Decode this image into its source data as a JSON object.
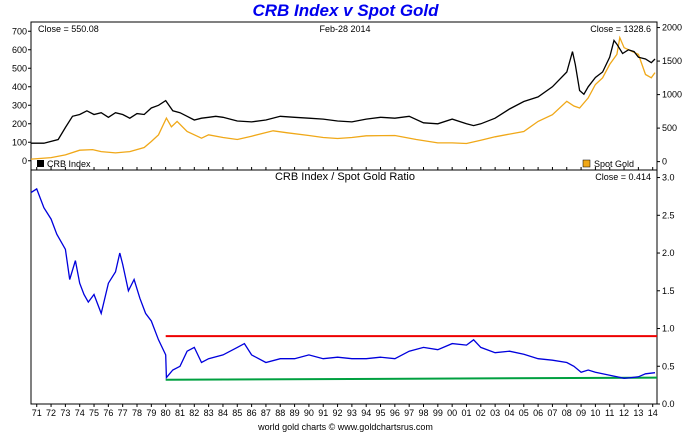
{
  "title": "CRB Index v Spot Gold",
  "footer": "world gold charts © www.goldchartsrus.com",
  "top_panel": {
    "close_left": "Close = 550.08",
    "date": "Feb-28  2014",
    "close_right": "Close = 1328.6",
    "legend_left": "CRB Index",
    "legend_right": "Spot Gold",
    "left_ticks": [
      "0",
      "100",
      "200",
      "300",
      "400",
      "500",
      "600",
      "700"
    ],
    "right_ticks": [
      "0",
      "500",
      "1000",
      "1500",
      "2000"
    ]
  },
  "bottom_panel": {
    "title": "CRB Index  /  Spot Gold Ratio",
    "close": "Close = 0.414",
    "ticks": [
      "0.0",
      "0.5",
      "1.0",
      "1.5",
      "2.0",
      "2.5",
      "3.0"
    ]
  },
  "x_labels": [
    "71",
    "72",
    "73",
    "74",
    "75",
    "76",
    "77",
    "78",
    "79",
    "80",
    "81",
    "82",
    "83",
    "84",
    "85",
    "86",
    "87",
    "88",
    "89",
    "90",
    "91",
    "92",
    "93",
    "94",
    "95",
    "96",
    "97",
    "98",
    "99",
    "00",
    "01",
    "02",
    "03",
    "04",
    "05",
    "06",
    "07",
    "08",
    "09",
    "10",
    "11",
    "12",
    "13",
    "14"
  ],
  "colors": {
    "crb": "#000000",
    "gold": "#f0a818",
    "ratio": "#0000dd",
    "upper": "#ee0000",
    "lower": "#00a040",
    "title": "#0000ee"
  },
  "chart_data": [
    {
      "type": "line",
      "title": "",
      "xlim": [
        1970.6,
        2014.3
      ],
      "ylim_left": [
        -50,
        750
      ],
      "ylim_right": [
        -125,
        2083
      ],
      "series": [
        {
          "name": "CRB Index",
          "axis": "left",
          "x": [
            1970.6,
            1971.5,
            1972.5,
            1973.0,
            1973.5,
            1974.0,
            1974.5,
            1975.0,
            1975.5,
            1976.0,
            1976.5,
            1977.0,
            1977.5,
            1978.0,
            1978.5,
            1979.0,
            1979.5,
            1980.0,
            1980.5,
            1981.0,
            1981.5,
            1982.0,
            1982.5,
            1983.0,
            1983.5,
            1984.0,
            1984.5,
            1985.0,
            1986.0,
            1987.0,
            1988.0,
            1989.0,
            1990.0,
            1991.0,
            1992.0,
            1993.0,
            1994.0,
            1995.0,
            1996.0,
            1997.0,
            1998.0,
            1999.0,
            2000.0,
            2001.0,
            2001.5,
            2002.0,
            2003.0,
            2004.0,
            2005.0,
            2006.0,
            2007.0,
            2008.0,
            2008.4,
            2008.6,
            2008.9,
            2009.2,
            2009.5,
            2010.0,
            2010.5,
            2011.0,
            2011.3,
            2011.5,
            2011.9,
            2012.3,
            2012.7,
            2013.0,
            2013.5,
            2013.9,
            2014.16
          ],
          "values": [
            95,
            95,
            115,
            180,
            240,
            250,
            270,
            250,
            260,
            235,
            260,
            250,
            230,
            255,
            250,
            285,
            300,
            325,
            270,
            260,
            240,
            220,
            230,
            235,
            240,
            235,
            225,
            215,
            210,
            220,
            240,
            235,
            230,
            225,
            215,
            210,
            225,
            235,
            230,
            240,
            205,
            200,
            225,
            200,
            190,
            200,
            230,
            280,
            320,
            345,
            400,
            480,
            590,
            520,
            380,
            360,
            400,
            450,
            480,
            560,
            650,
            630,
            580,
            600,
            590,
            560,
            550,
            530,
            550
          ]
        },
        {
          "name": "Spot Gold",
          "axis": "right",
          "x": [
            1970.6,
            1972.0,
            1973.0,
            1974.0,
            1974.9,
            1975.5,
            1976.5,
            1977.5,
            1978.5,
            1979.0,
            1979.5,
            1980.05,
            1980.4,
            1980.8,
            1981.5,
            1982.5,
            1983.0,
            1984.0,
            1985.0,
            1986.0,
            1987.5,
            1988.5,
            1990.0,
            1991.0,
            1992.0,
            1993.0,
            1994.0,
            1996.0,
            1997.5,
            1999.0,
            2000.0,
            2001.0,
            2002.0,
            2003.0,
            2004.0,
            2005.0,
            2006.0,
            2007.0,
            2008.0,
            2008.5,
            2008.9,
            2009.5,
            2010.0,
            2010.5,
            2011.0,
            2011.5,
            2011.7,
            2012.0,
            2012.5,
            2013.0,
            2013.5,
            2013.9,
            2014.16
          ],
          "values": [
            38,
            60,
            100,
            170,
            180,
            150,
            130,
            150,
            210,
            300,
            400,
            650,
            520,
            600,
            450,
            350,
            400,
            360,
            330,
            380,
            460,
            430,
            390,
            360,
            345,
            360,
            385,
            390,
            330,
            280,
            280,
            270,
            320,
            370,
            410,
            450,
            600,
            700,
            900,
            830,
            800,
            950,
            1150,
            1250,
            1450,
            1600,
            1850,
            1700,
            1650,
            1600,
            1300,
            1250,
            1328.6
          ]
        }
      ]
    },
    {
      "type": "line",
      "title": "CRB Index  /  Spot Gold Ratio",
      "xlim": [
        1970.6,
        2014.3
      ],
      "ylim": [
        0,
        3.1
      ],
      "series": [
        {
          "name": "CRB Index / Spot Gold Ratio",
          "x": [
            1970.6,
            1971.0,
            1971.5,
            1972.0,
            1972.4,
            1973.0,
            1973.3,
            1973.7,
            1974.0,
            1974.3,
            1974.6,
            1975.0,
            1975.5,
            1976.0,
            1976.5,
            1976.8,
            1977.0,
            1977.4,
            1977.8,
            1978.2,
            1978.6,
            1979.0,
            1979.5,
            1980.0,
            1980.05,
            1980.5,
            1981.0,
            1981.5,
            1982.0,
            1982.5,
            1983.0,
            1984.0,
            1985.0,
            1985.5,
            1986.0,
            1987.0,
            1988.0,
            1989.0,
            1990.0,
            1991.0,
            1992.0,
            1993.0,
            1994.0,
            1995.0,
            1996.0,
            1997.0,
            1998.0,
            1999.0,
            2000.0,
            2001.0,
            2001.5,
            2002.0,
            2003.0,
            2004.0,
            2005.0,
            2006.0,
            2007.0,
            2008.0,
            2008.5,
            2009.0,
            2009.5,
            2010.0,
            2011.0,
            2011.5,
            2012.0,
            2012.5,
            2013.0,
            2013.5,
            2014.16
          ],
          "values": [
            2.8,
            2.85,
            2.6,
            2.45,
            2.25,
            2.05,
            1.65,
            1.9,
            1.6,
            1.45,
            1.35,
            1.45,
            1.2,
            1.6,
            1.75,
            2.0,
            1.85,
            1.5,
            1.65,
            1.4,
            1.2,
            1.1,
            0.85,
            0.65,
            0.35,
            0.45,
            0.5,
            0.7,
            0.75,
            0.55,
            0.6,
            0.65,
            0.75,
            0.8,
            0.65,
            0.55,
            0.6,
            0.6,
            0.65,
            0.6,
            0.62,
            0.6,
            0.6,
            0.62,
            0.6,
            0.7,
            0.75,
            0.72,
            0.8,
            0.78,
            0.85,
            0.75,
            0.68,
            0.7,
            0.66,
            0.6,
            0.58,
            0.55,
            0.5,
            0.42,
            0.45,
            0.42,
            0.38,
            0.36,
            0.34,
            0.35,
            0.36,
            0.4,
            0.414
          ]
        },
        {
          "name": "upper",
          "x": [
            1980.0,
            2014.3
          ],
          "values": [
            0.9,
            0.9
          ]
        },
        {
          "name": "lower",
          "x": [
            1980.0,
            2014.3
          ],
          "values": [
            0.32,
            0.35
          ]
        }
      ]
    }
  ]
}
